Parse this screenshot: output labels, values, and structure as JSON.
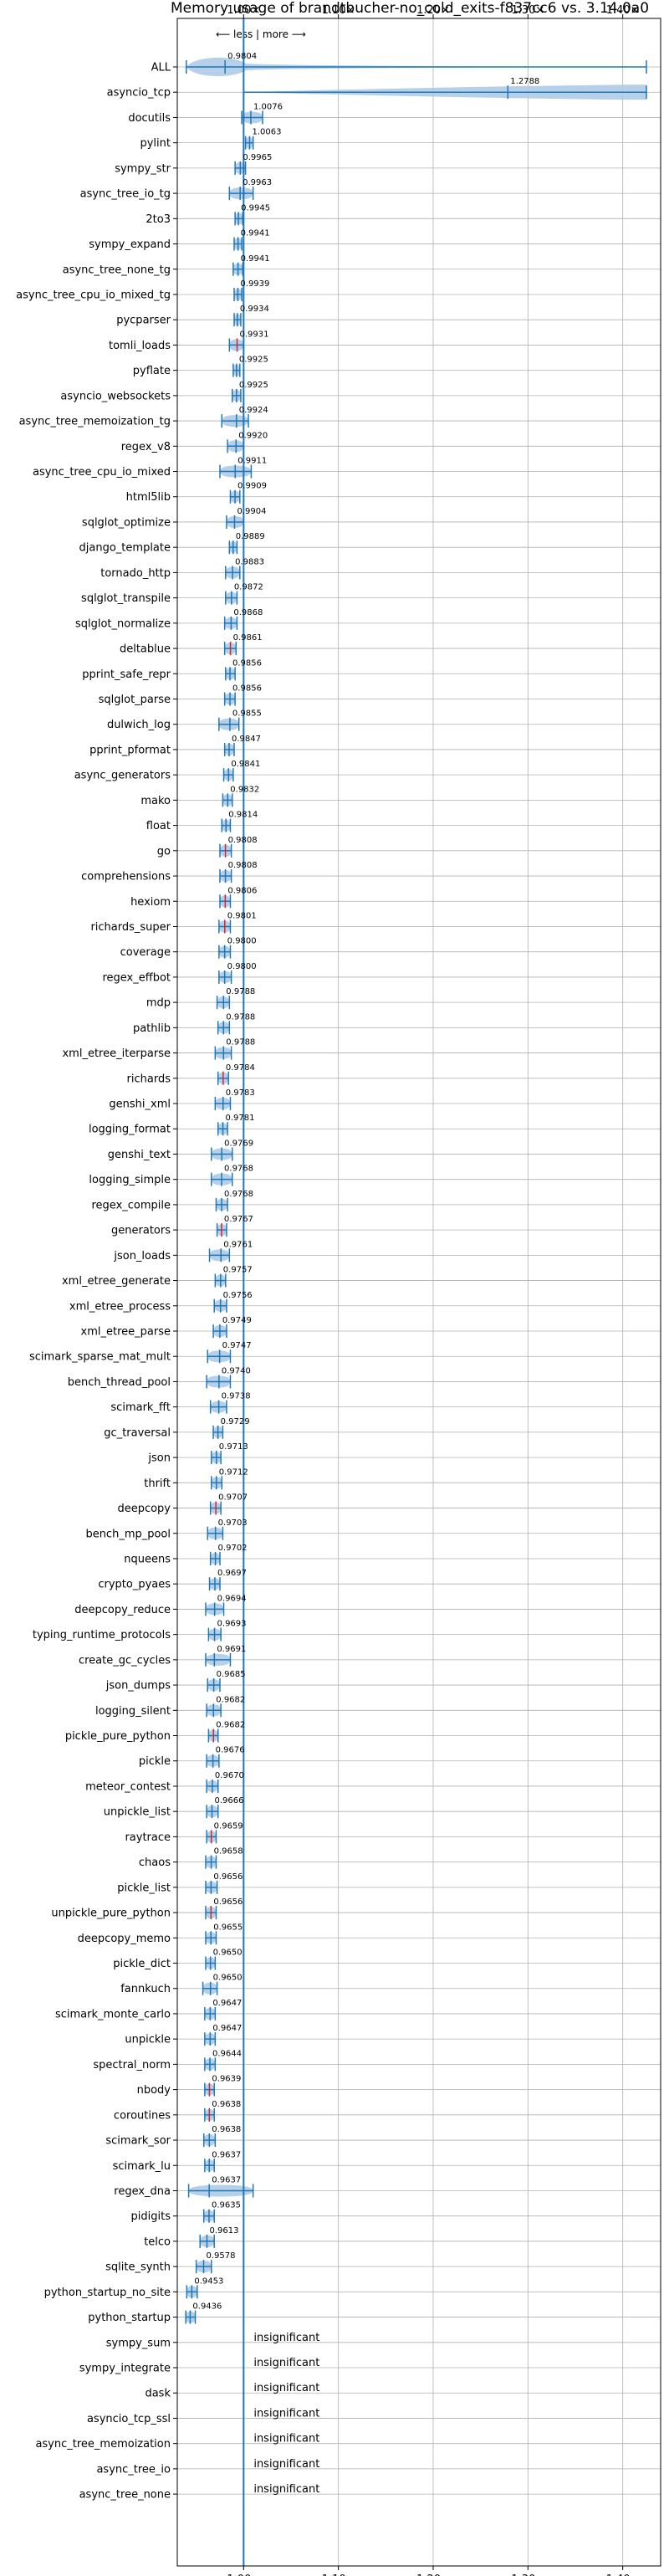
{
  "chart_data": {
    "type": "violin",
    "title": "Memory usage of brandtbucher-no_cold_exits-f837cc6 vs. 3.14.0a0",
    "xlabel": "",
    "ylabel": "",
    "direction_hint": "⟵ less | more ⟶",
    "xlim": [
      0.93,
      1.44
    ],
    "xticks": [
      1.0,
      1.1,
      1.2,
      1.3,
      1.4
    ],
    "xtick_labels": [
      "1.00×",
      "1.10×",
      "1.20×",
      "1.30×",
      "1.40×"
    ],
    "reference_line": 1.0,
    "grid": true,
    "colors": {
      "violin": "#a9c8e6",
      "line": "#1f77b4",
      "highlight": "#d62728"
    },
    "benchmarks": [
      {
        "name": "ALL",
        "value": 0.9804,
        "label": "0.9804",
        "min": 0.9395,
        "max": 1.425
      },
      {
        "name": "asyncio_tcp",
        "value": 1.2788,
        "label": "1.2788",
        "min": 1.0,
        "max": 1.425
      },
      {
        "name": "docutils",
        "value": 1.0076,
        "label": "1.0076",
        "min": 0.998,
        "max": 1.02
      },
      {
        "name": "pylint",
        "value": 1.0063,
        "label": "1.0063",
        "min": 1.002,
        "max": 1.01
      },
      {
        "name": "sympy_str",
        "value": 0.9965,
        "label": "0.9965",
        "min": 0.991,
        "max": 1.002
      },
      {
        "name": "async_tree_io_tg",
        "value": 0.9963,
        "label": "0.9963",
        "min": 0.985,
        "max": 1.01
      },
      {
        "name": "2to3",
        "value": 0.9945,
        "label": "0.9945",
        "min": 0.991,
        "max": 0.999
      },
      {
        "name": "sympy_expand",
        "value": 0.9941,
        "label": "0.9941",
        "min": 0.99,
        "max": 0.998
      },
      {
        "name": "async_tree_none_tg",
        "value": 0.9941,
        "label": "0.9941",
        "min": 0.989,
        "max": 0.999
      },
      {
        "name": "async_tree_cpu_io_mixed_tg",
        "value": 0.9939,
        "label": "0.9939",
        "min": 0.99,
        "max": 0.998
      },
      {
        "name": "pycparser",
        "value": 0.9934,
        "label": "0.9934",
        "min": 0.99,
        "max": 0.997
      },
      {
        "name": "tomli_loads",
        "value": 0.9931,
        "label": "0.9931",
        "min": 0.985,
        "max": 1.0
      },
      {
        "name": "pyflate",
        "value": 0.9925,
        "label": "0.9925",
        "min": 0.989,
        "max": 0.996
      },
      {
        "name": "asyncio_websockets",
        "value": 0.9925,
        "label": "0.9925",
        "min": 0.988,
        "max": 0.997
      },
      {
        "name": "async_tree_memoization_tg",
        "value": 0.9924,
        "label": "0.9924",
        "min": 0.977,
        "max": 1.005
      },
      {
        "name": "regex_v8",
        "value": 0.992,
        "label": "0.9920",
        "min": 0.983,
        "max": 1.0
      },
      {
        "name": "async_tree_cpu_io_mixed",
        "value": 0.9911,
        "label": "0.9911",
        "min": 0.975,
        "max": 1.008
      },
      {
        "name": "html5lib",
        "value": 0.9909,
        "label": "0.9909",
        "min": 0.986,
        "max": 0.996
      },
      {
        "name": "sqlglot_optimize",
        "value": 0.9904,
        "label": "0.9904",
        "min": 0.982,
        "max": 1.0
      },
      {
        "name": "django_template",
        "value": 0.9889,
        "label": "0.9889",
        "min": 0.985,
        "max": 0.993
      },
      {
        "name": "tornado_http",
        "value": 0.9883,
        "label": "0.9883",
        "min": 0.981,
        "max": 0.996
      },
      {
        "name": "sqlglot_transpile",
        "value": 0.9872,
        "label": "0.9872",
        "min": 0.981,
        "max": 0.993
      },
      {
        "name": "sqlglot_normalize",
        "value": 0.9868,
        "label": "0.9868",
        "min": 0.98,
        "max": 0.993
      },
      {
        "name": "deltablue",
        "value": 0.9861,
        "label": "0.9861",
        "min": 0.98,
        "max": 0.992
      },
      {
        "name": "pprint_safe_repr",
        "value": 0.9856,
        "label": "0.9856",
        "min": 0.981,
        "max": 0.991
      },
      {
        "name": "sqlglot_parse",
        "value": 0.9856,
        "label": "0.9856",
        "min": 0.98,
        "max": 0.991
      },
      {
        "name": "dulwich_log",
        "value": 0.9855,
        "label": "0.9855",
        "min": 0.974,
        "max": 0.995
      },
      {
        "name": "pprint_pformat",
        "value": 0.9847,
        "label": "0.9847",
        "min": 0.98,
        "max": 0.99
      },
      {
        "name": "async_generators",
        "value": 0.9841,
        "label": "0.9841",
        "min": 0.979,
        "max": 0.989
      },
      {
        "name": "mako",
        "value": 0.9832,
        "label": "0.9832",
        "min": 0.978,
        "max": 0.988
      },
      {
        "name": "float",
        "value": 0.9814,
        "label": "0.9814",
        "min": 0.977,
        "max": 0.986
      },
      {
        "name": "go",
        "value": 0.9808,
        "label": "0.9808",
        "min": 0.975,
        "max": 0.987
      },
      {
        "name": "comprehensions",
        "value": 0.9808,
        "label": "0.9808",
        "min": 0.975,
        "max": 0.987
      },
      {
        "name": "hexiom",
        "value": 0.9806,
        "label": "0.9806",
        "min": 0.975,
        "max": 0.986
      },
      {
        "name": "richards_super",
        "value": 0.9801,
        "label": "0.9801",
        "min": 0.974,
        "max": 0.986
      },
      {
        "name": "coverage",
        "value": 0.98,
        "label": "0.9800",
        "min": 0.974,
        "max": 0.986
      },
      {
        "name": "regex_effbot",
        "value": 0.98,
        "label": "0.9800",
        "min": 0.974,
        "max": 0.987
      },
      {
        "name": "mdp",
        "value": 0.9788,
        "label": "0.9788",
        "min": 0.972,
        "max": 0.985
      },
      {
        "name": "pathlib",
        "value": 0.9788,
        "label": "0.9788",
        "min": 0.973,
        "max": 0.985
      },
      {
        "name": "xml_etree_iterparse",
        "value": 0.9788,
        "label": "0.9788",
        "min": 0.97,
        "max": 0.987
      },
      {
        "name": "richards",
        "value": 0.9784,
        "label": "0.9784",
        "min": 0.973,
        "max": 0.984
      },
      {
        "name": "genshi_xml",
        "value": 0.9783,
        "label": "0.9783",
        "min": 0.97,
        "max": 0.986
      },
      {
        "name": "logging_format",
        "value": 0.9781,
        "label": "0.9781",
        "min": 0.973,
        "max": 0.983
      },
      {
        "name": "genshi_text",
        "value": 0.9769,
        "label": "0.9769",
        "min": 0.966,
        "max": 0.988
      },
      {
        "name": "logging_simple",
        "value": 0.9768,
        "label": "0.9768",
        "min": 0.966,
        "max": 0.988
      },
      {
        "name": "regex_compile",
        "value": 0.9768,
        "label": "0.9768",
        "min": 0.971,
        "max": 0.983
      },
      {
        "name": "generators",
        "value": 0.9767,
        "label": "0.9767",
        "min": 0.972,
        "max": 0.982
      },
      {
        "name": "json_loads",
        "value": 0.9761,
        "label": "0.9761",
        "min": 0.964,
        "max": 0.985
      },
      {
        "name": "xml_etree_generate",
        "value": 0.9757,
        "label": "0.9757",
        "min": 0.97,
        "max": 0.981
      },
      {
        "name": "xml_etree_process",
        "value": 0.9756,
        "label": "0.9756",
        "min": 0.969,
        "max": 0.982
      },
      {
        "name": "xml_etree_parse",
        "value": 0.9749,
        "label": "0.9749",
        "min": 0.968,
        "max": 0.982
      },
      {
        "name": "scimark_sparse_mat_mult",
        "value": 0.9747,
        "label": "0.9747",
        "min": 0.962,
        "max": 0.986
      },
      {
        "name": "bench_thread_pool",
        "value": 0.974,
        "label": "0.9740",
        "min": 0.961,
        "max": 0.986
      },
      {
        "name": "scimark_fft",
        "value": 0.9738,
        "label": "0.9738",
        "min": 0.965,
        "max": 0.982
      },
      {
        "name": "gc_traversal",
        "value": 0.9729,
        "label": "0.9729",
        "min": 0.968,
        "max": 0.978
      },
      {
        "name": "json",
        "value": 0.9713,
        "label": "0.9713",
        "min": 0.966,
        "max": 0.976
      },
      {
        "name": "thrift",
        "value": 0.9712,
        "label": "0.9712",
        "min": 0.966,
        "max": 0.977
      },
      {
        "name": "deepcopy",
        "value": 0.9707,
        "label": "0.9707",
        "min": 0.965,
        "max": 0.976
      },
      {
        "name": "bench_mp_pool",
        "value": 0.9703,
        "label": "0.9703",
        "min": 0.962,
        "max": 0.978
      },
      {
        "name": "nqueens",
        "value": 0.9702,
        "label": "0.9702",
        "min": 0.965,
        "max": 0.975
      },
      {
        "name": "crypto_pyaes",
        "value": 0.9697,
        "label": "0.9697",
        "min": 0.964,
        "max": 0.975
      },
      {
        "name": "deepcopy_reduce",
        "value": 0.9694,
        "label": "0.9694",
        "min": 0.96,
        "max": 0.979
      },
      {
        "name": "typing_runtime_protocols",
        "value": 0.9693,
        "label": "0.9693",
        "min": 0.963,
        "max": 0.976
      },
      {
        "name": "create_gc_cycles",
        "value": 0.9691,
        "label": "0.9691",
        "min": 0.96,
        "max": 0.986
      },
      {
        "name": "json_dumps",
        "value": 0.9685,
        "label": "0.9685",
        "min": 0.962,
        "max": 0.975
      },
      {
        "name": "logging_silent",
        "value": 0.9682,
        "label": "0.9682",
        "min": 0.961,
        "max": 0.976
      },
      {
        "name": "pickle_pure_python",
        "value": 0.9682,
        "label": "0.9682",
        "min": 0.963,
        "max": 0.973
      },
      {
        "name": "pickle",
        "value": 0.9676,
        "label": "0.9676",
        "min": 0.961,
        "max": 0.974
      },
      {
        "name": "meteor_contest",
        "value": 0.967,
        "label": "0.9670",
        "min": 0.961,
        "max": 0.973
      },
      {
        "name": "unpickle_list",
        "value": 0.9666,
        "label": "0.9666",
        "min": 0.961,
        "max": 0.973
      },
      {
        "name": "raytrace",
        "value": 0.9659,
        "label": "0.9659",
        "min": 0.961,
        "max": 0.971
      },
      {
        "name": "chaos",
        "value": 0.9658,
        "label": "0.9658",
        "min": 0.96,
        "max": 0.971
      },
      {
        "name": "pickle_list",
        "value": 0.9656,
        "label": "0.9656",
        "min": 0.96,
        "max": 0.972
      },
      {
        "name": "unpickle_pure_python",
        "value": 0.9656,
        "label": "0.9656",
        "min": 0.96,
        "max": 0.971
      },
      {
        "name": "deepcopy_memo",
        "value": 0.9655,
        "label": "0.9655",
        "min": 0.96,
        "max": 0.971
      },
      {
        "name": "pickle_dict",
        "value": 0.965,
        "label": "0.9650",
        "min": 0.96,
        "max": 0.97
      },
      {
        "name": "fannkuch",
        "value": 0.965,
        "label": "0.9650",
        "min": 0.957,
        "max": 0.972
      },
      {
        "name": "scimark_monte_carlo",
        "value": 0.9647,
        "label": "0.9647",
        "min": 0.959,
        "max": 0.97
      },
      {
        "name": "unpickle",
        "value": 0.9647,
        "label": "0.9647",
        "min": 0.959,
        "max": 0.97
      },
      {
        "name": "spectral_norm",
        "value": 0.9644,
        "label": "0.9644",
        "min": 0.959,
        "max": 0.97
      },
      {
        "name": "nbody",
        "value": 0.9639,
        "label": "0.9639",
        "min": 0.959,
        "max": 0.969
      },
      {
        "name": "coroutines",
        "value": 0.9638,
        "label": "0.9638",
        "min": 0.959,
        "max": 0.969
      },
      {
        "name": "scimark_sor",
        "value": 0.9638,
        "label": "0.9638",
        "min": 0.958,
        "max": 0.97
      },
      {
        "name": "scimark_lu",
        "value": 0.9637,
        "label": "0.9637",
        "min": 0.959,
        "max": 0.969
      },
      {
        "name": "regex_dna",
        "value": 0.9637,
        "label": "0.9637",
        "min": 0.942,
        "max": 1.01
      },
      {
        "name": "pidigits",
        "value": 0.9635,
        "label": "0.9635",
        "min": 0.958,
        "max": 0.969
      },
      {
        "name": "telco",
        "value": 0.9613,
        "label": "0.9613",
        "min": 0.954,
        "max": 0.969
      },
      {
        "name": "sqlite_synth",
        "value": 0.9578,
        "label": "0.9578",
        "min": 0.95,
        "max": 0.966
      },
      {
        "name": "python_startup_no_site",
        "value": 0.9453,
        "label": "0.9453",
        "min": 0.94,
        "max": 0.951
      },
      {
        "name": "python_startup",
        "value": 0.9436,
        "label": "0.9436",
        "min": 0.939,
        "max": 0.949
      },
      {
        "name": "sympy_sum",
        "value": null,
        "label": "insignificant"
      },
      {
        "name": "sympy_integrate",
        "value": null,
        "label": "insignificant"
      },
      {
        "name": "dask",
        "value": null,
        "label": "insignificant"
      },
      {
        "name": "asyncio_tcp_ssl",
        "value": null,
        "label": "insignificant"
      },
      {
        "name": "async_tree_memoization",
        "value": null,
        "label": "insignificant"
      },
      {
        "name": "async_tree_io",
        "value": null,
        "label": "insignificant"
      },
      {
        "name": "async_tree_none",
        "value": null,
        "label": "insignificant"
      }
    ]
  }
}
